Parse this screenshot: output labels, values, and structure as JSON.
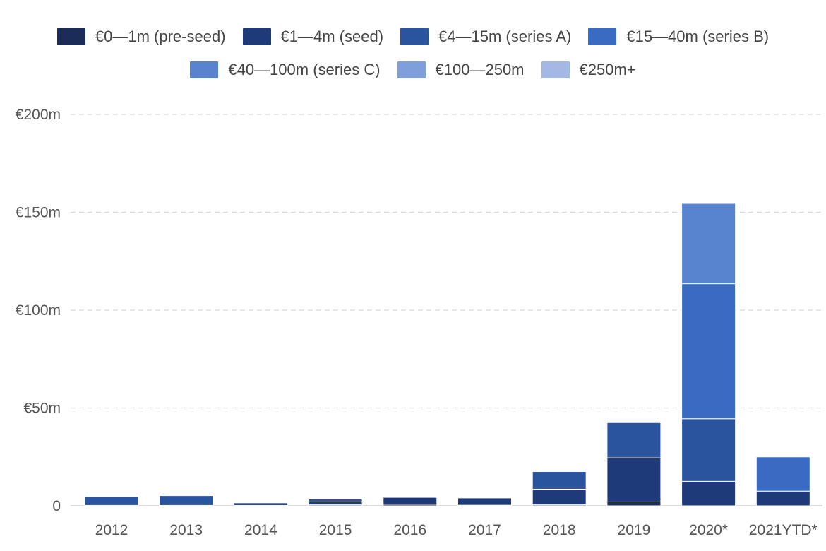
{
  "chart_data": {
    "type": "bar",
    "stacked": true,
    "title": "",
    "xlabel": "",
    "ylabel": "",
    "categories": [
      "2012",
      "2013",
      "2014",
      "2015",
      "2016",
      "2017",
      "2018",
      "2019",
      "2020*",
      "2021YTD*"
    ],
    "ylim": [
      0,
      200
    ],
    "y_ticks": [
      {
        "value": 0,
        "label": "0"
      },
      {
        "value": 50,
        "label": "€50m"
      },
      {
        "value": 100,
        "label": "€100m"
      },
      {
        "value": 150,
        "label": "€150m"
      },
      {
        "value": 200,
        "label": "€200m"
      }
    ],
    "grid": "horizontal dashed",
    "legend_position": "top",
    "series": [
      {
        "name": "€0—1m (pre-seed)",
        "color": "#1b2c58",
        "values": [
          0.2,
          0.2,
          0.2,
          0.5,
          0.8,
          0.3,
          0.5,
          2.0,
          0,
          0
        ]
      },
      {
        "name": "€1—4m (seed)",
        "color": "#1f3a78",
        "values": [
          0,
          0,
          1.3,
          1.5,
          3.5,
          3.7,
          8.0,
          22.5,
          12.5,
          7.5
        ]
      },
      {
        "name": "€4—15m (series A)",
        "color": "#2a559e",
        "values": [
          4.5,
          5.0,
          0,
          1.5,
          0,
          0,
          9.0,
          18.0,
          32.0,
          0
        ]
      },
      {
        "name": "€15—40m (series B)",
        "color": "#3a6bc2",
        "values": [
          0,
          0,
          0,
          0,
          0,
          0,
          0,
          0,
          69.0,
          17.5
        ]
      },
      {
        "name": "€40—100m (series C)",
        "color": "#5883cf",
        "values": [
          0,
          0,
          0,
          0,
          0,
          0,
          0,
          0,
          41.0,
          0
        ]
      },
      {
        "name": "€100—250m",
        "color": "#7e9fdb",
        "values": [
          0,
          0,
          0,
          0,
          0,
          0,
          0,
          0,
          0,
          0
        ]
      },
      {
        "name": "€250m+",
        "color": "#a3b8e4",
        "values": [
          0,
          0,
          0,
          0,
          0,
          0,
          0,
          0,
          0,
          0
        ]
      }
    ]
  }
}
